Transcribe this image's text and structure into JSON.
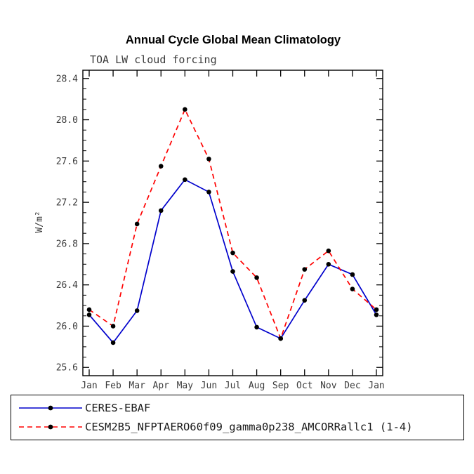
{
  "chart_data": {
    "type": "line",
    "title": "Annual Cycle Global Mean Climatology",
    "subtitle": "TOA LW cloud forcing",
    "ylabel": "W/m²",
    "xlabel": "",
    "categories": [
      "Jan",
      "Feb",
      "Mar",
      "Apr",
      "May",
      "Jun",
      "Jul",
      "Aug",
      "Sep",
      "Oct",
      "Nov",
      "Dec",
      "Jan"
    ],
    "ylim": [
      25.52,
      28.48
    ],
    "yticks": [
      25.6,
      26.0,
      26.4,
      26.8,
      27.2,
      27.6,
      28.0,
      28.4
    ],
    "minor_tick_interval": 0.1,
    "grid": false,
    "legend_position": "bottom",
    "marker_color": "#000000",
    "axis_color": "#000000",
    "series": [
      {
        "name": "CERES-EBAF",
        "color": "#0000cc",
        "style": "solid",
        "values": [
          26.11,
          25.84,
          26.15,
          27.12,
          27.42,
          27.3,
          26.53,
          25.99,
          25.88,
          26.25,
          26.6,
          26.5,
          26.11
        ]
      },
      {
        "name": "CESM2B5_NFPTAERO60f09_gamma0p238_AMCORRallc1 (1-4)",
        "color": "#ff0000",
        "style": "dashed",
        "values": [
          26.16,
          26.0,
          26.99,
          27.55,
          28.1,
          27.62,
          26.71,
          26.47,
          25.88,
          26.55,
          26.73,
          26.36,
          26.16
        ]
      }
    ]
  }
}
